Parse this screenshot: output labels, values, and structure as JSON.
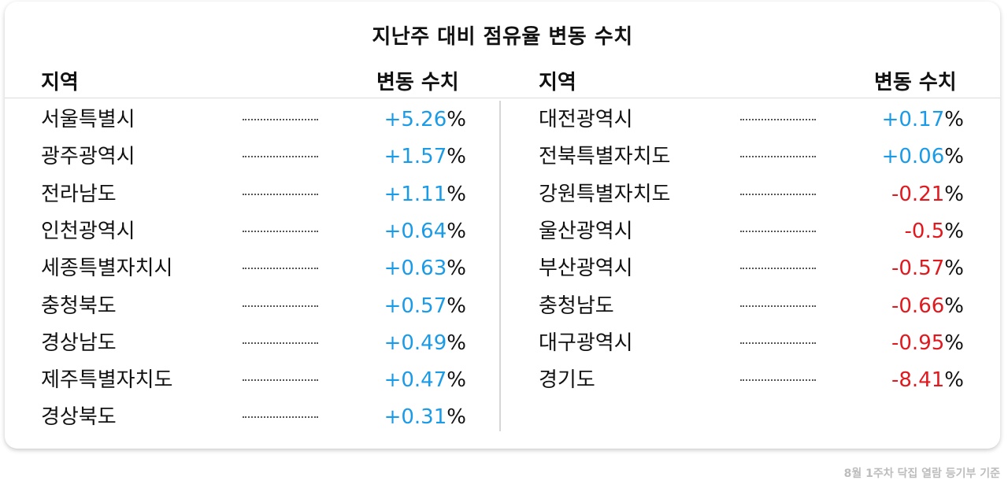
{
  "title": "지난주 대비 점유율 변동 수치",
  "columns": {
    "region_header": "지역",
    "change_header": "변동 수치"
  },
  "colors": {
    "positive": "#1a9be8",
    "negative": "#e0191f"
  },
  "left_rows": [
    {
      "region": "서울특별시",
      "value": "+5.26",
      "unit": "%"
    },
    {
      "region": "광주광역시",
      "value": "+1.57",
      "unit": "%"
    },
    {
      "region": "전라남도",
      "value": "+1.11",
      "unit": "%"
    },
    {
      "region": "인천광역시",
      "value": "+0.64",
      "unit": "%"
    },
    {
      "region": "세종특별자치시",
      "value": "+0.63",
      "unit": "%"
    },
    {
      "region": "충청북도",
      "value": "+0.57",
      "unit": "%"
    },
    {
      "region": "경상남도",
      "value": "+0.49",
      "unit": "%"
    },
    {
      "region": "제주특별자치도",
      "value": "+0.47",
      "unit": "%"
    },
    {
      "region": "경상북도",
      "value": "+0.31",
      "unit": "%"
    }
  ],
  "right_rows": [
    {
      "region": "대전광역시",
      "value": "+0.17",
      "unit": "%"
    },
    {
      "region": "전북특별자치도",
      "value": "+0.06",
      "unit": "%"
    },
    {
      "region": "강원특별자치도",
      "value": "-0.21",
      "unit": "%"
    },
    {
      "region": "울산광역시",
      "value": "-0.5",
      "unit": "%"
    },
    {
      "region": "부산광역시",
      "value": "-0.57",
      "unit": "%"
    },
    {
      "region": "충청남도",
      "value": "-0.66",
      "unit": "%"
    },
    {
      "region": "대구광역시",
      "value": "-0.95",
      "unit": "%"
    },
    {
      "region": "경기도",
      "value": "-8.41",
      "unit": "%"
    }
  ],
  "footer": "8월 1주차 닥집 열람 등기부 기준"
}
